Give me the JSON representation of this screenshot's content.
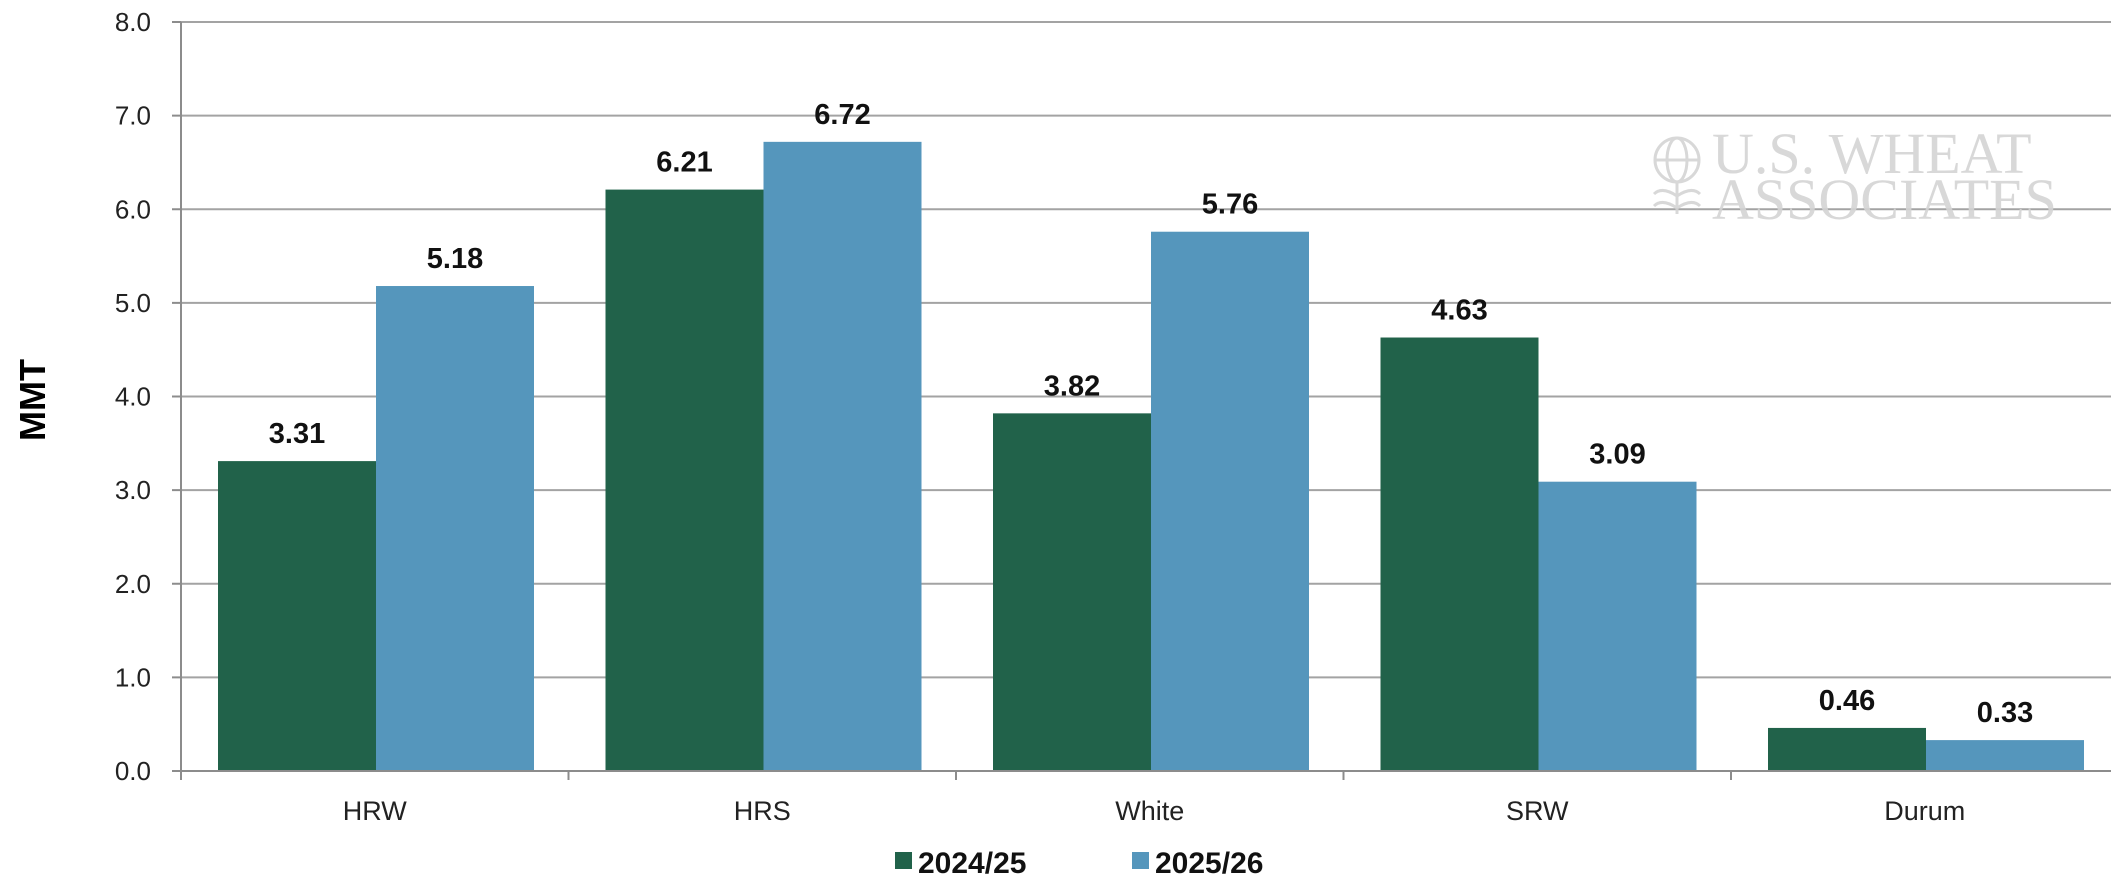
{
  "chart_data": {
    "type": "bar",
    "categories": [
      "HRW",
      "HRS",
      "White",
      "SRW",
      "Durum"
    ],
    "series": [
      {
        "name": "2024/25",
        "values": [
          3.31,
          6.21,
          3.82,
          4.63,
          0.46
        ],
        "color": "#21624a"
      },
      {
        "name": "2025/26",
        "values": [
          5.18,
          6.72,
          5.76,
          3.09,
          0.33
        ],
        "color": "#5596bc"
      }
    ],
    "data_labels": [
      [
        "3.31",
        "6.21",
        "3.82",
        "4.63",
        "0.46"
      ],
      [
        "5.18",
        "6.72",
        "5.76",
        "3.09",
        "0.33"
      ]
    ],
    "ylabel": "MMT",
    "xlabel": "",
    "title": "",
    "ylim": [
      0,
      8
    ],
    "yticks": [
      0,
      1,
      2,
      3,
      4,
      5,
      6,
      7,
      8
    ],
    "ytick_labels": [
      "0.0",
      "1.0",
      "2.0",
      "3.0",
      "4.0",
      "5.0",
      "6.0",
      "7.0",
      "8.0"
    ],
    "grid": true,
    "legend_position": "bottom-center"
  },
  "watermark": {
    "line1": "U.S. WHEAT",
    "line2": "ASSOCIATES",
    "icon": "wheat-globe-logo"
  }
}
